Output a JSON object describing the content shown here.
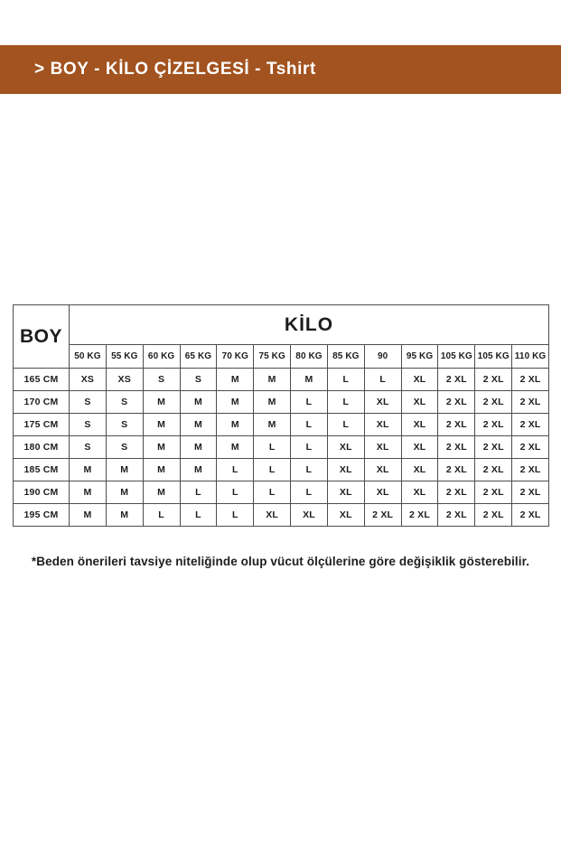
{
  "banner": {
    "title": "> BOY - KİLO ÇİZELGESİ - Tshirt",
    "bg_color": "#A2531F",
    "text_color": "#FFFFFF"
  },
  "table": {
    "corner_header": "BOY",
    "group_header": "KİLO",
    "weight_columns": [
      "50 KG",
      "55 KG",
      "60 KG",
      "65 KG",
      "70 KG",
      "75 KG",
      "80 KG",
      "85 KG",
      "90",
      "95 KG",
      "105 KG",
      "105 KG",
      "110 KG"
    ],
    "rows": [
      {
        "height": "165 CM",
        "sizes": [
          "XS",
          "XS",
          "S",
          "S",
          "M",
          "M",
          "M",
          "L",
          "L",
          "XL",
          "2 XL",
          "2 XL",
          "2 XL"
        ]
      },
      {
        "height": "170 CM",
        "sizes": [
          "S",
          "S",
          "M",
          "M",
          "M",
          "M",
          "L",
          "L",
          "XL",
          "XL",
          "2 XL",
          "2 XL",
          "2 XL"
        ]
      },
      {
        "height": "175 CM",
        "sizes": [
          "S",
          "S",
          "M",
          "M",
          "M",
          "M",
          "L",
          "L",
          "XL",
          "XL",
          "2 XL",
          "2 XL",
          "2 XL"
        ]
      },
      {
        "height": "180 CM",
        "sizes": [
          "S",
          "S",
          "M",
          "M",
          "M",
          "L",
          "L",
          "XL",
          "XL",
          "XL",
          "2 XL",
          "2 XL",
          "2 XL"
        ]
      },
      {
        "height": "185 CM",
        "sizes": [
          "M",
          "M",
          "M",
          "M",
          "L",
          "L",
          "L",
          "XL",
          "XL",
          "XL",
          "2 XL",
          "2 XL",
          "2 XL"
        ]
      },
      {
        "height": "190 CM",
        "sizes": [
          "M",
          "M",
          "M",
          "L",
          "L",
          "L",
          "L",
          "XL",
          "XL",
          "XL",
          "2 XL",
          "2 XL",
          "2 XL"
        ]
      },
      {
        "height": "195 CM",
        "sizes": [
          "M",
          "M",
          "L",
          "L",
          "L",
          "XL",
          "XL",
          "XL",
          "2 XL",
          "2 XL",
          "2 XL",
          "2 XL",
          "2 XL"
        ]
      }
    ]
  },
  "footnote": "*Beden önerileri tavsiye niteliğinde olup vücut ölçülerine göre değişiklik gösterebilir.",
  "colors": {
    "banner_bg": "#A2531F",
    "table_border": "#4D4D4D",
    "text": "#1D1D1D"
  }
}
